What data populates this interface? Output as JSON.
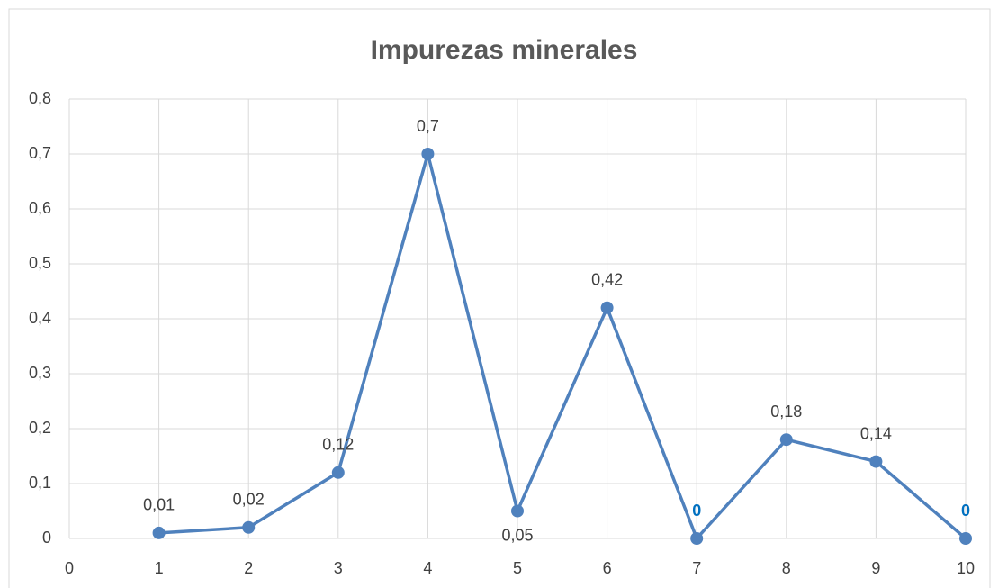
{
  "chart_data": {
    "type": "line",
    "title": "Impurezas minerales",
    "x": [
      1,
      2,
      3,
      4,
      5,
      6,
      7,
      8,
      9,
      10
    ],
    "series": [
      {
        "name": "Impurezas minerales",
        "color": "#4f81bd",
        "values": [
          0.01,
          0.02,
          0.12,
          0.7,
          0.05,
          0.42,
          0,
          0.18,
          0.14,
          0
        ],
        "value_labels": [
          "0,01",
          "0,02",
          "0,12",
          "0,7",
          "0,05",
          "0,42",
          "0",
          "0,18",
          "0,14",
          "0"
        ],
        "value_label_colors": [
          "#404040",
          "#404040",
          "#404040",
          "#404040",
          "#404040",
          "#404040",
          "#0070c0",
          "#404040",
          "#404040",
          "#0070c0"
        ],
        "value_label_positions": [
          "above",
          "above",
          "above",
          "above",
          "below",
          "above",
          "above",
          "above",
          "above",
          "above"
        ]
      }
    ],
    "xlim": [
      0,
      10
    ],
    "xticks": [
      0,
      1,
      2,
      3,
      4,
      5,
      6,
      7,
      8,
      9,
      10
    ],
    "ylim": [
      0,
      0.8
    ],
    "yticks": [
      0,
      {
        "value": 0.1,
        "label": "0,1"
      },
      {
        "value": 0.2,
        "label": "0,2"
      },
      {
        "value": 0.3,
        "label": "0,3"
      },
      {
        "value": 0.4,
        "label": "0,4"
      },
      {
        "value": 0.5,
        "label": "0,5"
      },
      {
        "value": 0.6,
        "label": "0,6"
      },
      {
        "value": 0.7,
        "label": "0,7"
      },
      {
        "value": 0.8,
        "label": "0,8"
      }
    ],
    "grid": true
  }
}
